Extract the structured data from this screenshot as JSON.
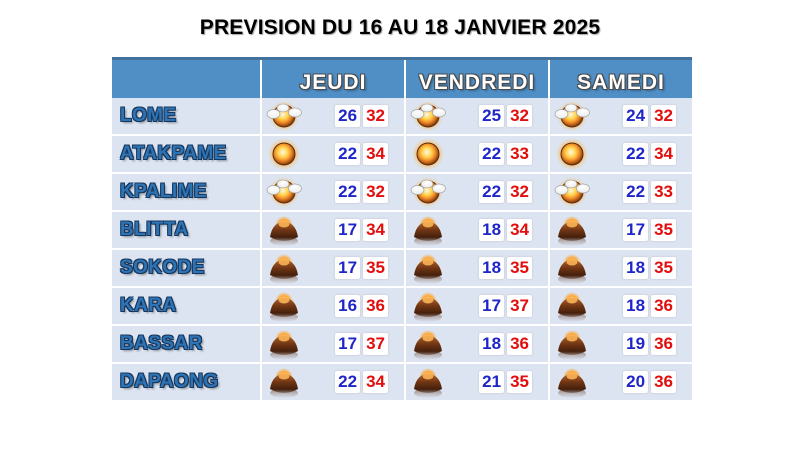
{
  "title": "PREVISION DU 16 AU 18 JANVIER 2025",
  "colors": {
    "header_blue": "#4f8fc6",
    "header_border": "#41719c",
    "row_bg": "#dce4f1",
    "city_blue": "#2e74b5",
    "min_blue": "#1f25c8",
    "max_red": "#e20d0d"
  },
  "table": {
    "day_headers": [
      "JEUDI",
      "VENDREDI",
      "SAMEDI"
    ],
    "rows": [
      {
        "city": "LOME",
        "days": [
          {
            "icon": "sun-clouds",
            "min": 26,
            "max": 32
          },
          {
            "icon": "sun-clouds",
            "min": 25,
            "max": 32
          },
          {
            "icon": "sun-clouds",
            "min": 24,
            "max": 32
          }
        ]
      },
      {
        "city": "ATAKPAME",
        "days": [
          {
            "icon": "sun",
            "min": 22,
            "max": 34
          },
          {
            "icon": "sun",
            "min": 22,
            "max": 33
          },
          {
            "icon": "sun",
            "min": 22,
            "max": 34
          }
        ]
      },
      {
        "city": "KPALIME",
        "days": [
          {
            "icon": "sun-clouds",
            "min": 22,
            "max": 32
          },
          {
            "icon": "sun-clouds",
            "min": 22,
            "max": 32
          },
          {
            "icon": "sun-clouds",
            "min": 22,
            "max": 33
          }
        ]
      },
      {
        "city": "BLITTA",
        "days": [
          {
            "icon": "haze",
            "min": 17,
            "max": 34
          },
          {
            "icon": "haze",
            "min": 18,
            "max": 34
          },
          {
            "icon": "haze",
            "min": 17,
            "max": 35
          }
        ]
      },
      {
        "city": "SOKODE",
        "days": [
          {
            "icon": "haze",
            "min": 17,
            "max": 35
          },
          {
            "icon": "haze",
            "min": 18,
            "max": 35
          },
          {
            "icon": "haze",
            "min": 18,
            "max": 35
          }
        ]
      },
      {
        "city": "KARA",
        "days": [
          {
            "icon": "haze",
            "min": 16,
            "max": 36
          },
          {
            "icon": "haze",
            "min": 17,
            "max": 37
          },
          {
            "icon": "haze",
            "min": 18,
            "max": 36
          }
        ]
      },
      {
        "city": "BASSAR",
        "days": [
          {
            "icon": "haze",
            "min": 17,
            "max": 37
          },
          {
            "icon": "haze",
            "min": 18,
            "max": 36
          },
          {
            "icon": "haze",
            "min": 19,
            "max": 36
          }
        ]
      },
      {
        "city": "DAPAONG",
        "days": [
          {
            "icon": "haze",
            "min": 22,
            "max": 34
          },
          {
            "icon": "haze",
            "min": 21,
            "max": 35
          },
          {
            "icon": "haze",
            "min": 20,
            "max": 36
          }
        ]
      }
    ]
  }
}
